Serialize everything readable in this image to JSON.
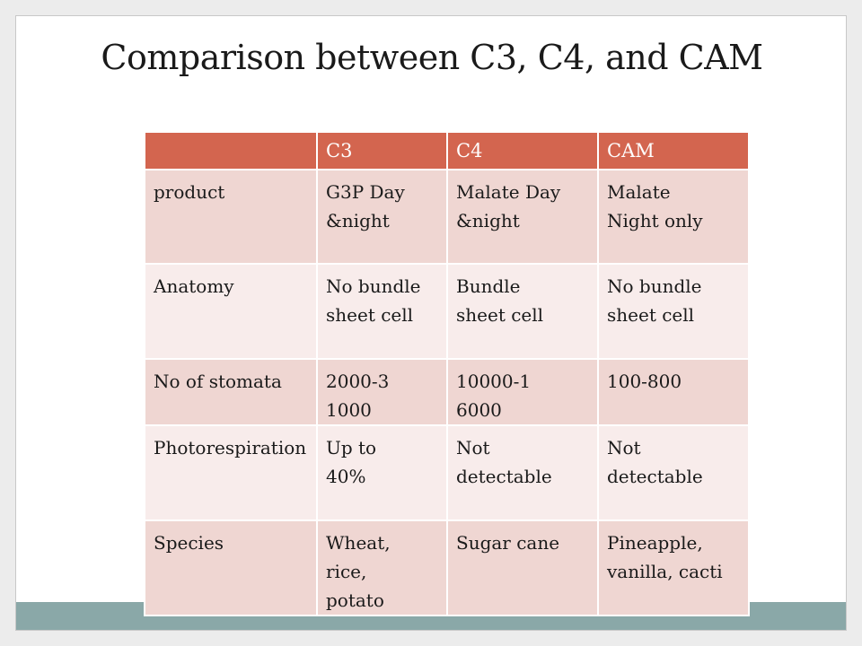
{
  "slide": {
    "title": "Comparison between C3, C4, and CAM"
  },
  "table": {
    "headers": [
      "",
      "C3",
      "C4",
      "CAM"
    ],
    "rows": [
      {
        "label": "product",
        "c3": "G3P Day &night",
        "c4": "Malate Day &night",
        "cam": "Malate Night only"
      },
      {
        "label": "Anatomy",
        "c3": "No bundle sheet cell",
        "c4": "Bundle sheet cell",
        "cam": "No bundle sheet cell"
      },
      {
        "label": "No of stomata",
        "c3": "2000-31000",
        "c4": "10000-16000",
        "cam": "100-800"
      },
      {
        "label": "Photorespiration",
        "c3": "Up to 40%",
        "c4": "Not detectable",
        "cam": "Not detectable"
      },
      {
        "label": "Species",
        "c3": "Wheat, rice, potato",
        "c4": "Sugar cane",
        "cam": "Pineapple, vanilla, cacti"
      }
    ]
  },
  "colors": {
    "header_bg": "#d3654f",
    "row_dark": "#efd6d2",
    "row_light": "#f8eceb",
    "footer_band": "#8aa8a8"
  }
}
